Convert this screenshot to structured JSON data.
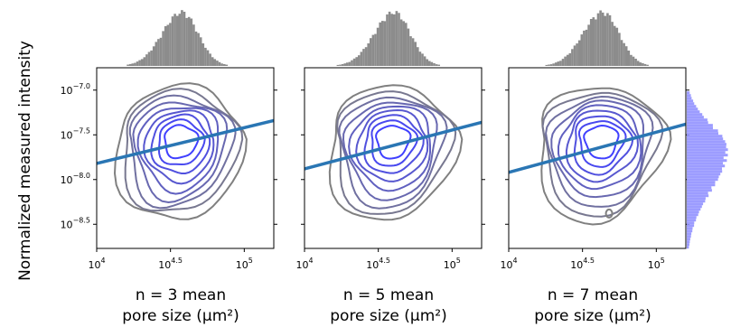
{
  "chart_data": {
    "type": "contour",
    "ylabel": "Normalized measured intensity",
    "xscale": "log",
    "yscale": "log",
    "xlim_exponent": [
      4,
      5.2
    ],
    "ylim_exponent": [
      -8.77,
      -6.75
    ],
    "x_ticks": [
      {
        "base": "10",
        "exp": "4",
        "value": 4
      },
      {
        "base": "10",
        "exp": "4.5",
        "value": 4.5
      },
      {
        "base": "10",
        "exp": "5",
        "value": 5
      }
    ],
    "y_ticks": [
      {
        "base": "10",
        "exp": "−7.0",
        "value": -7.0
      },
      {
        "base": "10",
        "exp": "−7.5",
        "value": -7.5
      },
      {
        "base": "10",
        "exp": "−8.0",
        "value": -8.0
      },
      {
        "base": "10",
        "exp": "−8.5",
        "value": -8.5
      }
    ],
    "colors": {
      "fit_line": "#2a76b4",
      "histogram": "#8c8c8c",
      "side_histogram": "#9c9cff",
      "contour_outer": "#808080",
      "contour_inner": "#4040ff"
    },
    "panels": [
      {
        "xlabel_line1": "n = 3 mean",
        "xlabel_line2": "pore size (µm²)",
        "fit_line": {
          "x": [
            4,
            5.2
          ],
          "y": [
            -7.82,
            -7.34
          ]
        },
        "center": [
          4.57,
          -7.55
        ],
        "contour_levels": 9
      },
      {
        "xlabel_line1": "n = 5 mean",
        "xlabel_line2": "pore size (µm²)",
        "fit_line": {
          "x": [
            4,
            5.2
          ],
          "y": [
            -7.88,
            -7.36
          ]
        },
        "center": [
          4.6,
          -7.55
        ],
        "contour_levels": 9
      },
      {
        "xlabel_line1": "n = 7 mean",
        "xlabel_line2": "pore size (µm²)",
        "fit_line": {
          "x": [
            4,
            5.2
          ],
          "y": [
            -7.92,
            -7.38
          ]
        },
        "center": [
          4.63,
          -7.55
        ],
        "contour_levels": 9,
        "extra_contour": [
          4.68,
          -8.38
        ]
      }
    ]
  }
}
